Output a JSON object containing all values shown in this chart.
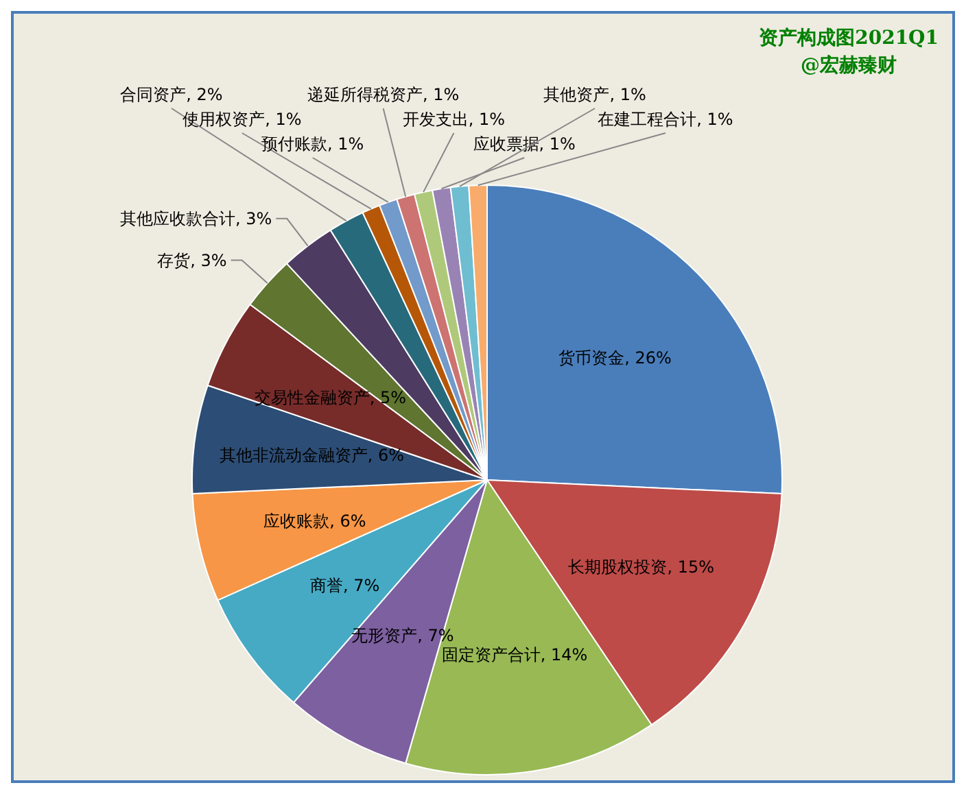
{
  "chart_data": {
    "type": "pie",
    "title": "资产构成图2021Q1",
    "subtitle": "@宏赫臻财",
    "categories": [
      "货币资金",
      "长期股权投资",
      "固定资产合计",
      "无形资产",
      "商誉",
      "应收账款",
      "其他非流动金融资产",
      "交易性金融资产",
      "存货",
      "其他应收款合计",
      "合同资产",
      "使用权资产",
      "预付账款",
      "递延所得税资产",
      "开发支出",
      "应收票据",
      "其他资产",
      "在建工程合计"
    ],
    "values": [
      26,
      15,
      14,
      7,
      7,
      6,
      6,
      5,
      3,
      3,
      2,
      1,
      1,
      1,
      1,
      1,
      1,
      1
    ],
    "value_labels": [
      ", 26%",
      ", 15%",
      ", 14%",
      ", 7%",
      ", 7%",
      ", 6%",
      ", 6%",
      ", 5%",
      ", 3%",
      ", 3%",
      ", 2%",
      ", 1%",
      ", 1%",
      ", 1%",
      ", 1%",
      ", 1%",
      ", 1%",
      ", 1%"
    ],
    "colors": [
      "#4a7ebb",
      "#be4b48",
      "#98b954",
      "#7d60a0",
      "#46aac5",
      "#f79646",
      "#2c4d75",
      "#772c2a",
      "#5f7530",
      "#4d3b62",
      "#276a7c",
      "#b65708",
      "#729aca",
      "#cd7371",
      "#afc97a",
      "#9983b5",
      "#6fbdd1",
      "#f9ab6b"
    ]
  }
}
